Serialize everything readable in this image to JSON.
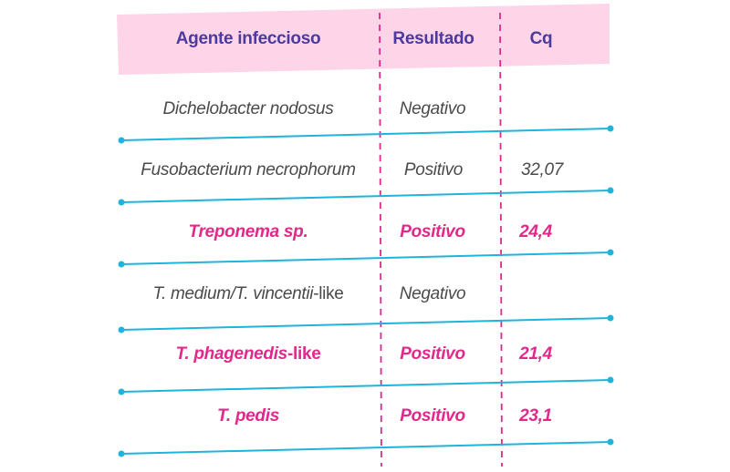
{
  "colors": {
    "header_fill": "#fdd4e8",
    "header_text": "#4b3aa0",
    "row_line": "#1fb4dc",
    "divider": "#e0298a",
    "highlight_text": "#e0298a",
    "normal_text": "#4a4a4a"
  },
  "headers": {
    "agent": "Agente infeccioso",
    "result": "Resultado",
    "cq": "Cq"
  },
  "rows": [
    {
      "agent": "Dichelobacter nodosus",
      "result": "Negativo",
      "cq": "",
      "highlight": false
    },
    {
      "agent": "Fusobacterium necrophorum",
      "result": "Positivo",
      "cq": "32,07",
      "highlight": false
    },
    {
      "agent": "Treponema sp.",
      "result": "Positivo",
      "cq": "24,4",
      "highlight": true
    },
    {
      "agent_italic": "T. medium/T. vincentii",
      "agent_suffix": "-like",
      "result": "Negativo",
      "cq": "",
      "highlight": false
    },
    {
      "agent_italic": "T. phagenedis",
      "agent_suffix": "-like",
      "result": "Positivo",
      "cq": "21,4",
      "highlight": true
    },
    {
      "agent": "T. pedis",
      "result": "Positivo",
      "cq": "23,1",
      "highlight": true
    }
  ]
}
